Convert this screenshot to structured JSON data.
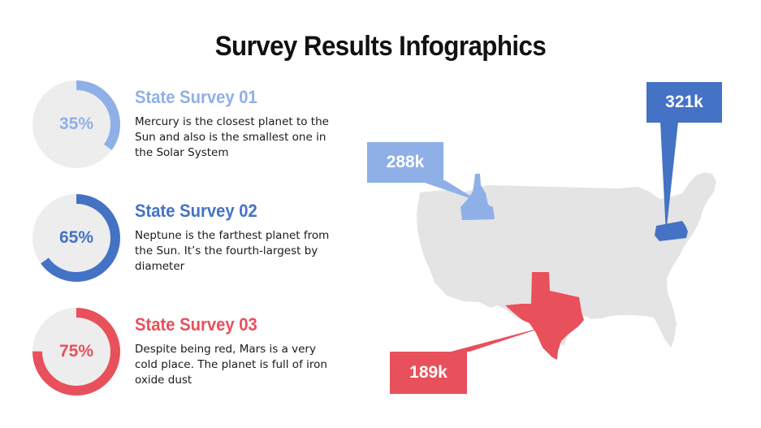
{
  "title": "Survey Results Infographics",
  "surveys": [
    {
      "heading": "State Survey 01",
      "percent": "35%",
      "value": 0.35,
      "description": "Mercury is the closest planet to the Sun and also is the smallest one in the Solar System",
      "color": "#8fb0e6"
    },
    {
      "heading": "State Survey 02",
      "percent": "65%",
      "value": 0.65,
      "description": "Neptune is the farthest planet from the Sun. It’s the fourth-largest by diameter",
      "color": "#4472c4"
    },
    {
      "heading": "State Survey 03",
      "percent": "75%",
      "value": 0.75,
      "description": "Despite being red, Mars is a very cold place. The planet is full of iron oxide dust",
      "color": "#e8505b"
    }
  ],
  "map": {
    "base_color": "#e4e4e4",
    "callouts": [
      {
        "label": "288k",
        "state": "Idaho",
        "color": "#8fb0e6"
      },
      {
        "label": "321k",
        "state": "Pennsylvania",
        "color": "#4472c4"
      },
      {
        "label": "189k",
        "state": "Texas",
        "color": "#e8505b"
      }
    ]
  }
}
